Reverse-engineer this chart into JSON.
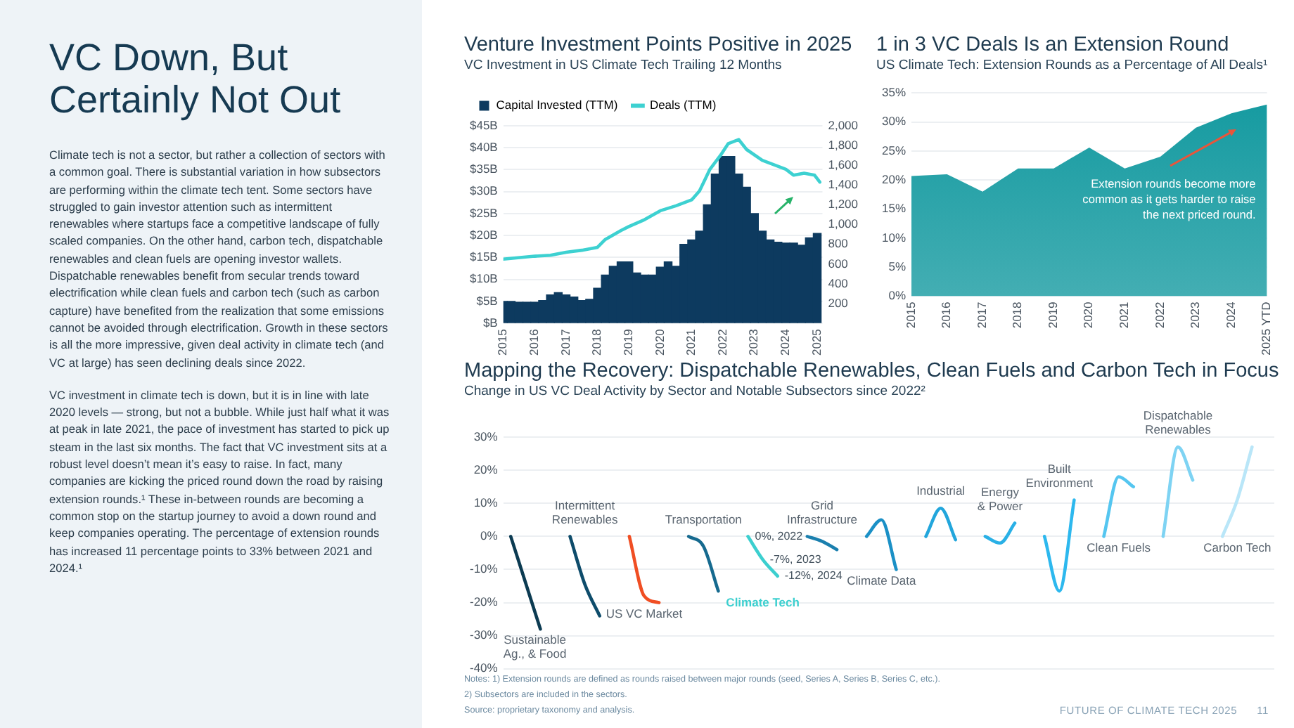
{
  "chart_data": [
    {
      "type": "other",
      "title": "VC Down, But Certainly Not Out",
      "annotations": [
        "Climate tech is not a sector, but rather a collection of sectors with a common goal. There is substantial variation in how subsectors are performing within the climate tech tent. Some sectors have struggled to gain investor attention such as intermittent renewables where startups face a competitive landscape of fully scaled companies. On the other hand, carbon tech, dispatchable renewables and clean fuels are opening investor wallets. Dispatchable renewables benefit from secular trends toward electrification while clean fuels and carbon tech (such as carbon capture) have benefited from the realization that some emissions cannot be avoided through electrification. Growth in these sectors is all the more impressive, given deal activity in climate tech (and VC at large) has seen declining deals since 2022.",
        "VC investment in climate tech is down, but it is in line with late 2020 levels — strong, but not a bubble. While just half what it was at peak in late 2021, the pace of investment has started to pick up steam in the last six months. The fact that VC investment sits at a robust level doesn’t mean it’s easy to raise. In fact, many companies are kicking the priced round down the road by raising extension rounds.¹ These in-between rounds are becoming a common stop on the startup journey to avoid a down round and keep companies operating. The percentage of extension rounds has increased 11 percentage points to 33% between 2021 and 2024.¹"
      ]
    },
    {
      "type": "bar",
      "title": "Venture Investment Points Positive in 2025",
      "subtitle": "VC Investment in US Climate Tech Trailing 12 Months",
      "legend": "top left",
      "grid": "y",
      "marker": "none",
      "xlim": [
        "2015",
        "2025-03"
      ],
      "xticks": [
        "2015",
        "2016",
        "2017",
        "2018",
        "2019",
        "2020",
        "2021",
        "2022",
        "2023",
        "2024",
        "2025"
      ],
      "ylim": [
        0,
        45
      ],
      "yticks": [
        {
          "value": 0,
          "label": "$B"
        },
        {
          "value": 5,
          "label": "$5B"
        },
        {
          "value": 10,
          "label": "$10B"
        },
        {
          "value": 15,
          "label": "$15B"
        },
        {
          "value": 20,
          "label": "$20B"
        },
        {
          "value": 25,
          "label": "$25B"
        },
        {
          "value": 30,
          "label": "$30B"
        },
        {
          "value": 35,
          "label": "$35B"
        },
        {
          "value": 40,
          "label": "$40B"
        },
        {
          "value": 45,
          "label": "$45B"
        }
      ],
      "y2lim": [
        0,
        2000
      ],
      "y2ticks": [
        200,
        400,
        600,
        800,
        {
          "value": 1000,
          "label": "1,000"
        },
        {
          "value": 1200,
          "label": "1,200"
        },
        {
          "value": 1400,
          "label": "1,400"
        },
        {
          "value": 1600,
          "label": "1,600"
        },
        {
          "value": 1800,
          "label": "1,800"
        },
        {
          "value": 2000,
          "label": "2,000"
        }
      ],
      "series": [
        {
          "name": "Capital Invested (TTM)",
          "color": "#0d3a5f",
          "x": [
            "2015-01",
            "2015-04",
            "2015-07",
            "2015-10",
            "2016-01",
            "2016-04",
            "2016-07",
            "2016-10",
            "2017-01",
            "2017-04",
            "2017-07",
            "2017-10",
            "2018-01",
            "2018-04",
            "2018-07",
            "2018-10",
            "2019-01",
            "2019-04",
            "2019-07",
            "2019-10",
            "2020-01",
            "2020-04",
            "2020-07",
            "2020-10",
            "2021-01",
            "2021-04",
            "2021-07",
            "2021-10",
            "2022-01",
            "2022-04",
            "2022-07",
            "2022-10",
            "2023-01",
            "2023-04",
            "2023-07",
            "2023-10",
            "2024-01",
            "2024-04",
            "2024-07",
            "2024-10",
            "2025-01"
          ],
          "values": [
            5,
            5,
            4.8,
            4.8,
            4.8,
            5.2,
            6.5,
            7,
            6.5,
            6,
            5.2,
            5.5,
            8,
            11,
            13,
            14,
            14,
            11.5,
            11,
            11,
            12.8,
            14,
            13,
            18,
            19,
            21,
            27,
            34,
            38,
            38,
            34,
            31,
            25,
            21,
            19,
            18.5,
            18.3,
            18.3,
            17.8,
            19.5,
            20.5
          ]
        },
        {
          "name": "Deals (TTM)",
          "type": "line",
          "axis": "y2",
          "color": "#3dd1d1",
          "x": [
            "2015-01",
            "2016-01",
            "2016-07",
            "2017-01",
            "2017-07",
            "2018-01",
            "2018-04",
            "2018-10",
            "2019-01",
            "2019-07",
            "2020-01",
            "2020-07",
            "2021-01",
            "2021-04",
            "2021-08",
            "2021-12",
            "2022-03",
            "2022-07",
            "2022-10",
            "2023-04",
            "2023-10",
            "2024-01",
            "2024-04",
            "2024-08",
            "2024-12",
            "2025-02"
          ],
          "values": [
            650,
            680,
            690,
            720,
            740,
            770,
            850,
            940,
            980,
            1050,
            1140,
            1190,
            1250,
            1340,
            1560,
            1700,
            1820,
            1860,
            1760,
            1650,
            1590,
            1560,
            1500,
            1520,
            1500,
            1430
          ]
        }
      ]
    },
    {
      "type": "area",
      "title": "1 in 3 VC Deals Is an Extension Round",
      "subtitle": "US Climate Tech: Extension Rounds as a Percentage of All Deals¹",
      "grid": "y",
      "marker": "none",
      "color": "#149aa0",
      "categories": [
        "2015",
        "2016",
        "2017",
        "2018",
        "2019",
        "2020",
        "2021",
        "2022",
        "2023",
        "2024",
        "2025 YTD"
      ],
      "values": [
        20.7,
        21,
        18,
        22,
        22,
        25.6,
        22,
        24,
        29,
        31.5,
        33
      ],
      "ylim": [
        0,
        35
      ],
      "yticks": [
        {
          "value": 0,
          "label": "0%"
        },
        {
          "value": 5,
          "label": "5%"
        },
        {
          "value": 10,
          "label": "10%"
        },
        {
          "value": 15,
          "label": "15%"
        },
        {
          "value": 20,
          "label": "20%"
        },
        {
          "value": 25,
          "label": "25%"
        },
        {
          "value": 30,
          "label": "30%"
        },
        {
          "value": 35,
          "label": "35%"
        }
      ],
      "annotations": [
        "Extension rounds become more common as it gets harder to raise the next priced round."
      ]
    },
    {
      "type": "line",
      "title": "Mapping the Recovery: Dispatchable Renewables, Clean Fuels and Carbon Tech in Focus",
      "subtitle": "Change in US VC Deal Activity by Sector and Notable Subsectors since 2022²",
      "grid": "y",
      "marker": "none",
      "tick_labels": "y",
      "categories": [
        null,
        null,
        null,
        null,
        null,
        null,
        null,
        null,
        null,
        null,
        null,
        null,
        null,
        null,
        null,
        null,
        null,
        null,
        null,
        null,
        null,
        null,
        null,
        null,
        null,
        null,
        null,
        null,
        null,
        null,
        null,
        null,
        null,
        null,
        null,
        null,
        null,
        null,
        null,
        null,
        null,
        null,
        null,
        null,
        null,
        null,
        null,
        null,
        null,
        null,
        null,
        null
      ],
      "ylim": [
        -40,
        30
      ],
      "yticks": [
        {
          "value": -40,
          "label": "-40%"
        },
        {
          "value": -30,
          "label": "-30%"
        },
        {
          "value": -20,
          "label": "-20%"
        },
        {
          "value": -10,
          "label": "-10%"
        },
        {
          "value": 0,
          "label": "0%"
        },
        {
          "value": 10,
          "label": "10%"
        },
        {
          "value": 20,
          "label": "20%"
        },
        {
          "value": 30,
          "label": "30%"
        }
      ],
      "series": [
        {
          "name": "Sustainable Ag., & Food",
          "color": "#0c3b52",
          "values": [
            0,
            -14,
            -28,
            null,
            null,
            null,
            null,
            null,
            null,
            null,
            null,
            null,
            null,
            null,
            null,
            null,
            null,
            null,
            null,
            null,
            null,
            null,
            null,
            null,
            null,
            null,
            null,
            null,
            null,
            null,
            null,
            null,
            null,
            null,
            null,
            null,
            null,
            null,
            null,
            null,
            null,
            null,
            null,
            null,
            null,
            null,
            null,
            null,
            null,
            null,
            null,
            null
          ]
        },
        {
          "name": "Intermittent Renewables",
          "color": "#0e4c6b",
          "values": [
            null,
            null,
            null,
            null,
            0,
            -14.5,
            -24,
            null,
            null,
            null,
            null,
            null,
            null,
            null,
            null,
            null,
            null,
            null,
            null,
            null,
            null,
            null,
            null,
            null,
            null,
            null,
            null,
            null,
            null,
            null,
            null,
            null,
            null,
            null,
            null,
            null,
            null,
            null,
            null,
            null,
            null,
            null,
            null,
            null,
            null,
            null,
            null,
            null,
            null,
            null,
            null,
            null
          ]
        },
        {
          "name": "US VC Market",
          "color": "#f04e23",
          "values": [
            null,
            null,
            null,
            null,
            null,
            null,
            null,
            null,
            0,
            -18,
            -20,
            null,
            null,
            null,
            null,
            null,
            null,
            null,
            null,
            null,
            null,
            null,
            null,
            null,
            null,
            null,
            null,
            null,
            null,
            null,
            null,
            null,
            null,
            null,
            null,
            null,
            null,
            null,
            null,
            null,
            null,
            null,
            null,
            null,
            null,
            null,
            null,
            null,
            null,
            null,
            null,
            null
          ]
        },
        {
          "name": "Transportation",
          "color": "#166a8f",
          "values": [
            null,
            null,
            null,
            null,
            null,
            null,
            null,
            null,
            null,
            null,
            null,
            null,
            0,
            -3,
            -16.5,
            null,
            null,
            null,
            null,
            null,
            null,
            null,
            null,
            null,
            null,
            null,
            null,
            null,
            null,
            null,
            null,
            null,
            null,
            null,
            null,
            null,
            null,
            null,
            null,
            null,
            null,
            null,
            null,
            null,
            null,
            null,
            null,
            null,
            null,
            null,
            null,
            null
          ]
        },
        {
          "name": "Climate Tech",
          "color": "#3ccfcf",
          "values": [
            null,
            null,
            null,
            null,
            null,
            null,
            null,
            null,
            null,
            null,
            null,
            null,
            null,
            null,
            null,
            null,
            0,
            -7,
            -12,
            null,
            null,
            null,
            null,
            null,
            null,
            null,
            null,
            null,
            null,
            null,
            null,
            null,
            null,
            null,
            null,
            null,
            null,
            null,
            null,
            null,
            null,
            null,
            null,
            null,
            null,
            null,
            null,
            null,
            null,
            null,
            null,
            null
          ],
          "value_labels": [
            null,
            null,
            null,
            null,
            null,
            null,
            null,
            null,
            null,
            null,
            null,
            null,
            null,
            null,
            null,
            null,
            "0%, 2022",
            "-7%, 2023",
            "-12%, 2024",
            null,
            null,
            null,
            null,
            null,
            null,
            null,
            null,
            null,
            null,
            null,
            null,
            null,
            null,
            null,
            null,
            null,
            null,
            null,
            null,
            null,
            null,
            null,
            null,
            null,
            null,
            null,
            null,
            null,
            null,
            null,
            null,
            null
          ]
        },
        {
          "name": "Grid Infrastructure",
          "color": "#1a7fae",
          "values": [
            null,
            null,
            null,
            null,
            null,
            null,
            null,
            null,
            null,
            null,
            null,
            null,
            null,
            null,
            null,
            null,
            null,
            null,
            null,
            null,
            0,
            -1.5,
            -4,
            null,
            null,
            null,
            null,
            null,
            null,
            null,
            null,
            null,
            null,
            null,
            null,
            null,
            null,
            null,
            null,
            null,
            null,
            null,
            null,
            null,
            null,
            null,
            null,
            null,
            null,
            null,
            null,
            null
          ]
        },
        {
          "name": "Climate Data",
          "color": "#1b90c6",
          "values": [
            null,
            null,
            null,
            null,
            null,
            null,
            null,
            null,
            null,
            null,
            null,
            null,
            null,
            null,
            null,
            null,
            null,
            null,
            null,
            null,
            null,
            null,
            null,
            null,
            0,
            5,
            -10,
            null,
            null,
            null,
            null,
            null,
            null,
            null,
            null,
            null,
            null,
            null,
            null,
            null,
            null,
            null,
            null,
            null,
            null,
            null,
            null,
            null,
            null,
            null,
            null,
            null
          ]
        },
        {
          "name": "Industrial",
          "color": "#22a6dc",
          "values": [
            null,
            null,
            null,
            null,
            null,
            null,
            null,
            null,
            null,
            null,
            null,
            null,
            null,
            null,
            null,
            null,
            null,
            null,
            null,
            null,
            null,
            null,
            null,
            null,
            null,
            null,
            null,
            null,
            0,
            8.5,
            -1,
            null,
            null,
            null,
            null,
            null,
            null,
            null,
            null,
            null,
            null,
            null,
            null,
            null,
            null,
            null,
            null,
            null,
            null,
            null,
            null,
            null
          ]
        },
        {
          "name": "Energy & Power",
          "color": "#29b0e6",
          "values": [
            null,
            null,
            null,
            null,
            null,
            null,
            null,
            null,
            null,
            null,
            null,
            null,
            null,
            null,
            null,
            null,
            null,
            null,
            null,
            null,
            null,
            null,
            null,
            null,
            null,
            null,
            null,
            null,
            null,
            null,
            null,
            null,
            0,
            -2,
            4,
            null,
            null,
            null,
            null,
            null,
            null,
            null,
            null,
            null,
            null,
            null,
            null,
            null,
            null,
            null,
            null,
            null
          ]
        },
        {
          "name": "Built Environment",
          "color": "#2db8ee",
          "values": [
            null,
            null,
            null,
            null,
            null,
            null,
            null,
            null,
            null,
            null,
            null,
            null,
            null,
            null,
            null,
            null,
            null,
            null,
            null,
            null,
            null,
            null,
            null,
            null,
            null,
            null,
            null,
            null,
            null,
            null,
            null,
            null,
            null,
            null,
            null,
            null,
            0,
            -16.5,
            11,
            null,
            null,
            null,
            null,
            null,
            null,
            null,
            null,
            null,
            null,
            null,
            null,
            null
          ]
        },
        {
          "name": "Clean Fuels",
          "color": "#55c6f0",
          "values": [
            null,
            null,
            null,
            null,
            null,
            null,
            null,
            null,
            null,
            null,
            null,
            null,
            null,
            null,
            null,
            null,
            null,
            null,
            null,
            null,
            null,
            null,
            null,
            null,
            null,
            null,
            null,
            null,
            null,
            null,
            null,
            null,
            null,
            null,
            null,
            null,
            null,
            null,
            null,
            null,
            0,
            18,
            15,
            null,
            null,
            null,
            null,
            null,
            null,
            null,
            null,
            null
          ]
        },
        {
          "name": "Dispatchable Renewables",
          "color": "#7ed3f3",
          "values": [
            null,
            null,
            null,
            null,
            null,
            null,
            null,
            null,
            null,
            null,
            null,
            null,
            null,
            null,
            null,
            null,
            null,
            null,
            null,
            null,
            null,
            null,
            null,
            null,
            null,
            null,
            null,
            null,
            null,
            null,
            null,
            null,
            null,
            null,
            null,
            null,
            null,
            null,
            null,
            null,
            null,
            null,
            null,
            null,
            0,
            27,
            17,
            null,
            null,
            null,
            null,
            null
          ]
        },
        {
          "name": "Carbon Tech",
          "color": "#b9e6f8",
          "values": [
            null,
            null,
            null,
            null,
            null,
            null,
            null,
            null,
            null,
            null,
            null,
            null,
            null,
            null,
            null,
            null,
            null,
            null,
            null,
            null,
            null,
            null,
            null,
            null,
            null,
            null,
            null,
            null,
            null,
            null,
            null,
            null,
            null,
            null,
            null,
            null,
            null,
            null,
            null,
            null,
            null,
            null,
            null,
            null,
            null,
            null,
            null,
            null,
            0,
            11,
            27,
            null
          ]
        }
      ],
      "annotations": [
        "Notes: 1) Extension rounds are defined as rounds raised between major rounds (seed, Series A, Series B, Series C, etc.).",
        "2) Subsectors are included in the sectors.",
        "Source: proprietary taxonomy and analysis.",
        "FUTURE OF CLIMATE TECH 2025",
        "11"
      ]
    }
  ]
}
